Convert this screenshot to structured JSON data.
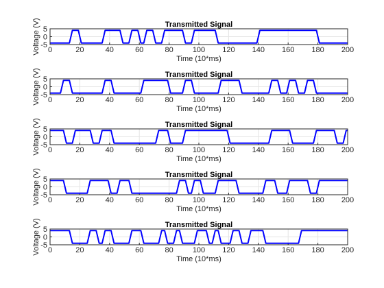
{
  "chart_data": [
    {
      "type": "line",
      "title": "Transmitted Signal",
      "xlabel": "Time (10*ms)",
      "ylabel": "Voltage (V)",
      "xlim": [
        0,
        200
      ],
      "ylim": [
        -5,
        5
      ],
      "xticks": [
        "0",
        "20",
        "40",
        "60",
        "80",
        "100",
        "120",
        "140",
        "160",
        "180",
        "200"
      ],
      "yticks": [
        "5",
        "0",
        "-5"
      ],
      "grid": true,
      "line_color": "#0000ff",
      "series": [
        {
          "x": [
            0,
            13,
            15,
            19,
            21,
            35,
            37,
            47,
            49,
            53,
            55,
            59,
            61,
            63,
            65,
            69,
            71,
            75,
            77,
            89,
            91,
            95,
            97,
            111,
            113,
            139,
            141,
            179,
            181,
            200
          ],
          "values": [
            -4,
            -4,
            4,
            4,
            -4,
            -4,
            4,
            4,
            -4,
            -4,
            4,
            4,
            -4,
            -4,
            4,
            4,
            -4,
            -4,
            4,
            4,
            -4,
            -4,
            4,
            4,
            -4,
            -4,
            4,
            4,
            -4,
            -4
          ]
        }
      ]
    },
    {
      "type": "line",
      "title": "Transmitted Signal",
      "xlabel": "Time (10*ms)",
      "ylabel": "Voltage (V)",
      "xlim": [
        0,
        200
      ],
      "ylim": [
        -5,
        5
      ],
      "xticks": [
        "0",
        "20",
        "40",
        "60",
        "80",
        "100",
        "120",
        "140",
        "160",
        "180",
        "200"
      ],
      "yticks": [
        "5",
        "0",
        "-5"
      ],
      "grid": true,
      "line_color": "#0000ff",
      "series": [
        {
          "x": [
            0,
            7,
            9,
            13,
            15,
            35,
            37,
            41,
            43,
            61,
            63,
            79,
            81,
            89,
            91,
            95,
            97,
            113,
            115,
            127,
            129,
            147,
            149,
            153,
            155,
            159,
            161,
            165,
            167,
            171,
            173,
            177,
            179,
            200
          ],
          "values": [
            -4,
            -4,
            4,
            4,
            -4,
            -4,
            4,
            4,
            -4,
            -4,
            4,
            4,
            -4,
            -4,
            4,
            4,
            -4,
            -4,
            4,
            4,
            -4,
            -4,
            4,
            4,
            -4,
            -4,
            4,
            4,
            -4,
            -4,
            4,
            4,
            -4,
            -4
          ]
        }
      ]
    },
    {
      "type": "line",
      "title": "Transmitted Signal",
      "xlabel": "Time (10*ms)",
      "ylabel": "Voltage (V)",
      "xlim": [
        0,
        200
      ],
      "ylim": [
        -5,
        5
      ],
      "xticks": [
        "0",
        "20",
        "40",
        "60",
        "80",
        "100",
        "120",
        "140",
        "160",
        "180",
        "200"
      ],
      "yticks": [
        "5",
        "0",
        "-5"
      ],
      "grid": true,
      "line_color": "#0000ff",
      "series": [
        {
          "x": [
            0,
            9,
            11,
            15,
            17,
            27,
            29,
            33,
            35,
            41,
            43,
            45,
            47,
            71,
            73,
            79,
            81,
            89,
            91,
            119,
            121,
            147,
            149,
            161,
            163,
            177,
            179,
            191,
            193,
            197,
            199,
            200
          ],
          "values": [
            4,
            4,
            -4,
            -4,
            4,
            4,
            -4,
            -4,
            4,
            4,
            -4,
            -4,
            -4,
            -4,
            4,
            4,
            -4,
            -4,
            4,
            4,
            -4,
            -4,
            4,
            4,
            -4,
            -4,
            4,
            4,
            -4,
            -4,
            4,
            4
          ]
        }
      ]
    },
    {
      "type": "line",
      "title": "Transmitted Signal",
      "xlabel": "Time (10*ms)",
      "ylabel": "Voltage (V)",
      "xlim": [
        0,
        200
      ],
      "ylim": [
        -5,
        5
      ],
      "xticks": [
        "0",
        "20",
        "40",
        "60",
        "80",
        "100",
        "120",
        "140",
        "160",
        "180",
        "200"
      ],
      "yticks": [
        "5",
        "0",
        "-5"
      ],
      "grid": true,
      "line_color": "#0000ff",
      "series": [
        {
          "x": [
            0,
            9,
            11,
            25,
            27,
            39,
            41,
            45,
            47,
            53,
            55,
            59,
            61,
            75,
            77,
            85,
            87,
            91,
            93,
            95,
            97,
            101,
            103,
            111,
            113,
            125,
            127,
            143,
            145,
            151,
            153,
            159,
            161,
            173,
            175,
            179,
            181,
            200
          ],
          "values": [
            4,
            4,
            -4,
            -4,
            4,
            4,
            -4,
            -4,
            4,
            4,
            -4,
            -4,
            -4,
            -4,
            -4,
            -4,
            4,
            4,
            -4,
            -4,
            4,
            4,
            -4,
            -4,
            4,
            4,
            -4,
            -4,
            4,
            4,
            -4,
            -4,
            4,
            4,
            -4,
            -4,
            4,
            4
          ]
        }
      ]
    },
    {
      "type": "line",
      "title": "Transmitted Signal",
      "xlabel": "Time (10*ms)",
      "ylabel": "Voltage (V)",
      "xlim": [
        0,
        200
      ],
      "ylim": [
        -5,
        5
      ],
      "xticks": [
        "0",
        "20",
        "40",
        "60",
        "80",
        "100",
        "120",
        "140",
        "160",
        "180",
        "200"
      ],
      "yticks": [
        "5",
        "0",
        "-5"
      ],
      "grid": true,
      "line_color": "#0000ff",
      "series": [
        {
          "x": [
            0,
            13,
            15,
            25,
            27,
            31,
            33,
            35,
            37,
            41,
            43,
            53,
            55,
            61,
            63,
            73,
            75,
            77,
            79,
            83,
            85,
            87,
            89,
            97,
            99,
            105,
            107,
            109,
            111,
            113,
            115,
            121,
            123,
            127,
            129,
            133,
            135,
            143,
            145,
            167,
            169,
            200
          ],
          "values": [
            4,
            4,
            -4,
            -4,
            4,
            4,
            -4,
            -4,
            4,
            4,
            -4,
            -4,
            4,
            4,
            -4,
            -4,
            4,
            4,
            -4,
            -4,
            4,
            4,
            -4,
            -4,
            4,
            4,
            -4,
            -4,
            4,
            4,
            -4,
            -4,
            4,
            4,
            -4,
            -4,
            4,
            4,
            -4,
            -4,
            4,
            4
          ]
        }
      ]
    }
  ]
}
